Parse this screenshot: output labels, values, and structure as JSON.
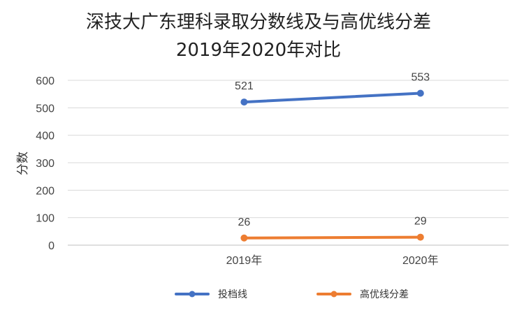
{
  "chart_data": {
    "type": "line",
    "title": "深技大广东理科录取分数线及与高优线分差",
    "subtitle": "2019年2020年对比",
    "ylabel": "分数",
    "xlabel": "",
    "categories": [
      "2019年",
      "2020年"
    ],
    "ylim": [
      0,
      600
    ],
    "yticks": [
      0,
      100,
      200,
      300,
      400,
      500,
      600
    ],
    "grid": true,
    "legend_position": "bottom",
    "series": [
      {
        "name": "投档线",
        "values": [
          521,
          553
        ],
        "color": "#4472C4"
      },
      {
        "name": "高优线分差",
        "values": [
          26,
          29
        ],
        "color": "#ED7D31"
      }
    ]
  }
}
